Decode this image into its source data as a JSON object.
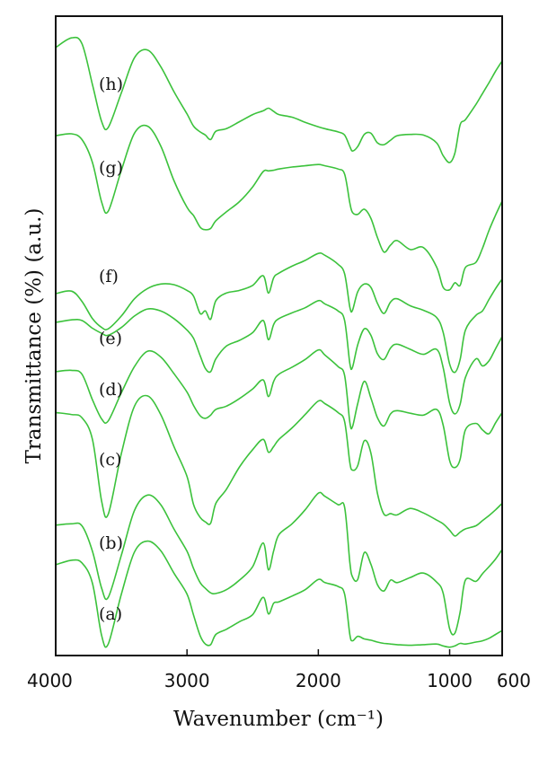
{
  "chart_data": {
    "type": "line",
    "title": "",
    "xlabel": "Wavenumber (cm⁻¹)",
    "ylabel": "Transmittance (%) (a.u.)",
    "xlim": [
      4000,
      600
    ],
    "x_reversed": true,
    "ylim": [
      0,
      100
    ],
    "y_ticks_shown": false,
    "x_ticks": [
      4000,
      3000,
      2000,
      1000,
      600
    ],
    "x_tick_labels": [
      "4000",
      "3000",
      "2000",
      "1000",
      "600"
    ],
    "grid": false,
    "legend": "none",
    "line_color": "#3cc23c",
    "series": [
      {
        "name": "(a)",
        "x": [
          4000,
          3880,
          3800,
          3720,
          3650,
          3600,
          3500,
          3400,
          3300,
          3200,
          3100,
          3000,
          2950,
          2900,
          2860,
          2820,
          2780,
          2700,
          2600,
          2500,
          2420,
          2380,
          2340,
          2300,
          2200,
          2100,
          2000,
          1950,
          1850,
          1800,
          1760,
          1740,
          1700,
          1650,
          1600,
          1550,
          1500,
          1450,
          1400,
          1300,
          1200,
          1100,
          1050,
          1000,
          960,
          920,
          880,
          800,
          750,
          700,
          650,
          600
        ],
        "y": [
          14.2,
          14.9,
          14.5,
          11.3,
          3.1,
          1.8,
          9.6,
          16.2,
          17.9,
          16.4,
          12.9,
          9.6,
          6.3,
          3.1,
          1.8,
          1.7,
          3.3,
          4.1,
          5.3,
          6.4,
          9.1,
          6.5,
          8.2,
          8.4,
          9.3,
          10.3,
          11.9,
          11.4,
          10.8,
          9.6,
          3.3,
          2.3,
          3.0,
          2.6,
          2.4,
          2.1,
          1.9,
          1.8,
          1.7,
          1.6,
          1.7,
          1.8,
          1.5,
          1.3,
          1.5,
          1.9,
          1.8,
          2.1,
          2.3,
          2.7,
          3.3,
          3.9
        ]
      },
      {
        "name": "(b)",
        "x": [
          4000,
          3880,
          3800,
          3720,
          3650,
          3600,
          3500,
          3400,
          3300,
          3200,
          3100,
          3000,
          2950,
          2900,
          2860,
          2820,
          2780,
          2700,
          2600,
          2500,
          2420,
          2380,
          2340,
          2300,
          2200,
          2100,
          2000,
          1950,
          1850,
          1800,
          1760,
          1740,
          1700,
          1650,
          1600,
          1550,
          1500,
          1450,
          1400,
          1300,
          1200,
          1100,
          1050,
          1000,
          960,
          920,
          880,
          800,
          750,
          700,
          650,
          600
        ],
        "y": [
          20.4,
          20.6,
          20.3,
          16.3,
          10.5,
          9.1,
          15.7,
          22.7,
          25.1,
          23.6,
          19.8,
          16.3,
          13.6,
          11.4,
          10.5,
          9.8,
          9.7,
          10.3,
          11.8,
          13.9,
          17.6,
          13.4,
          16.4,
          18.9,
          20.6,
          22.8,
          25.4,
          24.9,
          23.6,
          23.2,
          14.6,
          12.3,
          11.9,
          16.1,
          14.3,
          11.1,
          10.1,
          11.8,
          11.4,
          12.2,
          12.9,
          11.5,
          9.8,
          4.2,
          3.5,
          6.8,
          11.8,
          11.6,
          12.8,
          13.9,
          15.1,
          16.6
        ]
      },
      {
        "name": "(c)",
        "x": [
          4000,
          3880,
          3800,
          3720,
          3650,
          3600,
          3500,
          3400,
          3300,
          3200,
          3100,
          3000,
          2950,
          2900,
          2860,
          2820,
          2780,
          2700,
          2600,
          2500,
          2420,
          2380,
          2340,
          2300,
          2200,
          2100,
          2000,
          1950,
          1850,
          1800,
          1760,
          1740,
          1700,
          1650,
          1600,
          1550,
          1500,
          1450,
          1400,
          1300,
          1200,
          1100,
          1050,
          1000,
          960,
          920,
          880,
          800,
          750,
          700,
          650,
          600
        ],
        "y": [
          38.0,
          37.7,
          37.2,
          33.8,
          24.1,
          22.1,
          31.6,
          39.0,
          40.6,
          37.7,
          32.7,
          28.0,
          23.6,
          21.6,
          20.9,
          20.7,
          23.8,
          26.0,
          29.5,
          32.2,
          33.8,
          31.8,
          32.7,
          33.8,
          35.6,
          37.7,
          39.8,
          39.4,
          38.0,
          36.6,
          30.2,
          29.0,
          29.7,
          33.6,
          31.7,
          25.4,
          22.1,
          22.2,
          22.0,
          23.0,
          22.3,
          21.2,
          20.6,
          19.6,
          18.7,
          19.3,
          19.8,
          20.3,
          21.1,
          21.9,
          22.8,
          23.8
        ]
      },
      {
        "name": "(d)",
        "x": [
          4000,
          3880,
          3800,
          3720,
          3650,
          3600,
          3500,
          3400,
          3300,
          3200,
          3100,
          3000,
          2950,
          2900,
          2860,
          2820,
          2780,
          2700,
          2600,
          2500,
          2420,
          2380,
          2340,
          2300,
          2200,
          2100,
          2000,
          1950,
          1850,
          1800,
          1760,
          1740,
          1700,
          1650,
          1600,
          1550,
          1500,
          1450,
          1400,
          1300,
          1200,
          1100,
          1050,
          1000,
          960,
          920,
          880,
          800,
          750,
          700,
          650,
          600
        ],
        "y": [
          44.4,
          44.6,
          44.0,
          40.0,
          37.0,
          36.7,
          41.1,
          45.2,
          47.6,
          46.7,
          44.1,
          41.2,
          39.1,
          37.5,
          37.1,
          37.6,
          38.5,
          39.0,
          40.2,
          41.7,
          43.1,
          40.5,
          42.9,
          44.0,
          45.1,
          46.3,
          47.8,
          47.0,
          45.2,
          43.8,
          36.5,
          35.8,
          39.4,
          42.9,
          40.3,
          37.2,
          35.9,
          37.8,
          38.3,
          37.9,
          37.6,
          38.5,
          36.1,
          30.5,
          29.4,
          30.7,
          35.3,
          36.3,
          35.3,
          34.7,
          36.4,
          38.0
        ]
      },
      {
        "name": "(e)",
        "x": [
          4000,
          3880,
          3800,
          3720,
          3650,
          3600,
          3500,
          3400,
          3300,
          3200,
          3100,
          3000,
          2950,
          2900,
          2860,
          2820,
          2780,
          2700,
          2600,
          2500,
          2420,
          2380,
          2340,
          2300,
          2200,
          2100,
          2000,
          1950,
          1850,
          1800,
          1760,
          1740,
          1700,
          1650,
          1600,
          1550,
          1500,
          1450,
          1400,
          1300,
          1200,
          1100,
          1050,
          1000,
          960,
          920,
          880,
          800,
          750,
          700,
          650,
          600
        ],
        "y": [
          52.1,
          52.5,
          52.4,
          51.2,
          50.4,
          50.1,
          51.3,
          53.1,
          54.2,
          53.9,
          52.7,
          50.9,
          49.6,
          46.9,
          44.9,
          44.4,
          46.4,
          48.4,
          49.3,
          50.5,
          52.4,
          49.4,
          51.8,
          52.7,
          53.6,
          54.4,
          55.5,
          55.0,
          53.9,
          52.4,
          45.7,
          45.1,
          48.6,
          51.1,
          50.1,
          47.2,
          46.3,
          48.1,
          48.7,
          47.9,
          47.1,
          47.9,
          45.1,
          39.5,
          37.8,
          39.3,
          43.5,
          46.4,
          45.3,
          46.1,
          48.0,
          49.9
        ]
      },
      {
        "name": "(f)",
        "x": [
          4000,
          3880,
          3800,
          3720,
          3650,
          3600,
          3500,
          3400,
          3300,
          3200,
          3100,
          3000,
          2950,
          2900,
          2860,
          2820,
          2780,
          2700,
          2600,
          2500,
          2420,
          2380,
          2340,
          2300,
          2200,
          2100,
          2000,
          1950,
          1850,
          1800,
          1760,
          1740,
          1700,
          1650,
          1600,
          1550,
          1500,
          1450,
          1400,
          1300,
          1200,
          1100,
          1050,
          1000,
          960,
          920,
          880,
          800,
          750,
          700,
          650,
          600
        ],
        "y": [
          56.6,
          57.0,
          55.4,
          52.7,
          51.3,
          51.1,
          53.1,
          55.8,
          57.4,
          58.1,
          58.0,
          57.1,
          56.2,
          53.5,
          53.9,
          52.6,
          55.5,
          56.7,
          57.1,
          57.9,
          59.4,
          56.7,
          59.1,
          59.8,
          60.9,
          61.8,
          62.9,
          62.6,
          61.2,
          59.7,
          54.5,
          54.0,
          56.9,
          58.1,
          57.6,
          55.1,
          53.5,
          55.3,
          55.8,
          54.7,
          54.0,
          52.9,
          50.6,
          45.6,
          44.3,
          46.3,
          50.9,
          53.2,
          53.9,
          55.7,
          57.4,
          58.9
        ]
      },
      {
        "name": "(g)",
        "x": [
          4000,
          3880,
          3800,
          3720,
          3650,
          3600,
          3500,
          3400,
          3300,
          3200,
          3100,
          3000,
          2950,
          2900,
          2860,
          2820,
          2780,
          2700,
          2600,
          2500,
          2420,
          2380,
          2340,
          2300,
          2200,
          2100,
          2000,
          1950,
          1850,
          1800,
          1760,
          1740,
          1700,
          1650,
          1600,
          1550,
          1500,
          1450,
          1400,
          1300,
          1200,
          1100,
          1050,
          1000,
          960,
          920,
          880,
          800,
          750,
          700,
          650,
          600
        ],
        "y": [
          81.3,
          81.6,
          80.7,
          77.1,
          70.9,
          69.5,
          75.9,
          81.7,
          82.8,
          79.7,
          74.3,
          70.1,
          68.8,
          67.0,
          66.6,
          66.8,
          68.0,
          69.4,
          71.0,
          73.3,
          75.7,
          75.8,
          75.9,
          76.1,
          76.4,
          76.6,
          76.8,
          76.6,
          76.1,
          75.3,
          70.8,
          69.3,
          69.0,
          69.8,
          68.4,
          65.4,
          63.1,
          64.2,
          64.9,
          63.5,
          63.8,
          60.8,
          57.6,
          57.2,
          58.3,
          57.9,
          60.7,
          61.5,
          63.7,
          66.5,
          68.9,
          71.1
        ]
      },
      {
        "name": "(h)",
        "x": [
          4000,
          3880,
          3800,
          3720,
          3650,
          3600,
          3500,
          3400,
          3300,
          3200,
          3100,
          3000,
          2950,
          2900,
          2860,
          2820,
          2780,
          2700,
          2600,
          2500,
          2420,
          2380,
          2340,
          2300,
          2200,
          2100,
          2000,
          1950,
          1850,
          1800,
          1760,
          1740,
          1700,
          1650,
          1600,
          1550,
          1500,
          1450,
          1400,
          1300,
          1200,
          1100,
          1050,
          1000,
          960,
          920,
          880,
          800,
          750,
          700,
          650,
          600
        ],
        "y": [
          95.1,
          96.6,
          95.7,
          89.3,
          83.5,
          82.6,
          88.0,
          93.5,
          94.7,
          92.1,
          88.2,
          84.7,
          82.8,
          81.9,
          81.4,
          80.7,
          82.0,
          82.4,
          83.5,
          84.6,
          85.2,
          85.6,
          85.1,
          84.6,
          84.2,
          83.4,
          82.7,
          82.4,
          81.9,
          81.4,
          79.6,
          78.9,
          79.6,
          81.5,
          81.7,
          80.2,
          79.9,
          80.6,
          81.3,
          81.5,
          81.4,
          80.2,
          78.2,
          77.1,
          78.6,
          83.0,
          83.8,
          86.2,
          87.9,
          89.6,
          91.4,
          93.0
        ]
      }
    ]
  }
}
